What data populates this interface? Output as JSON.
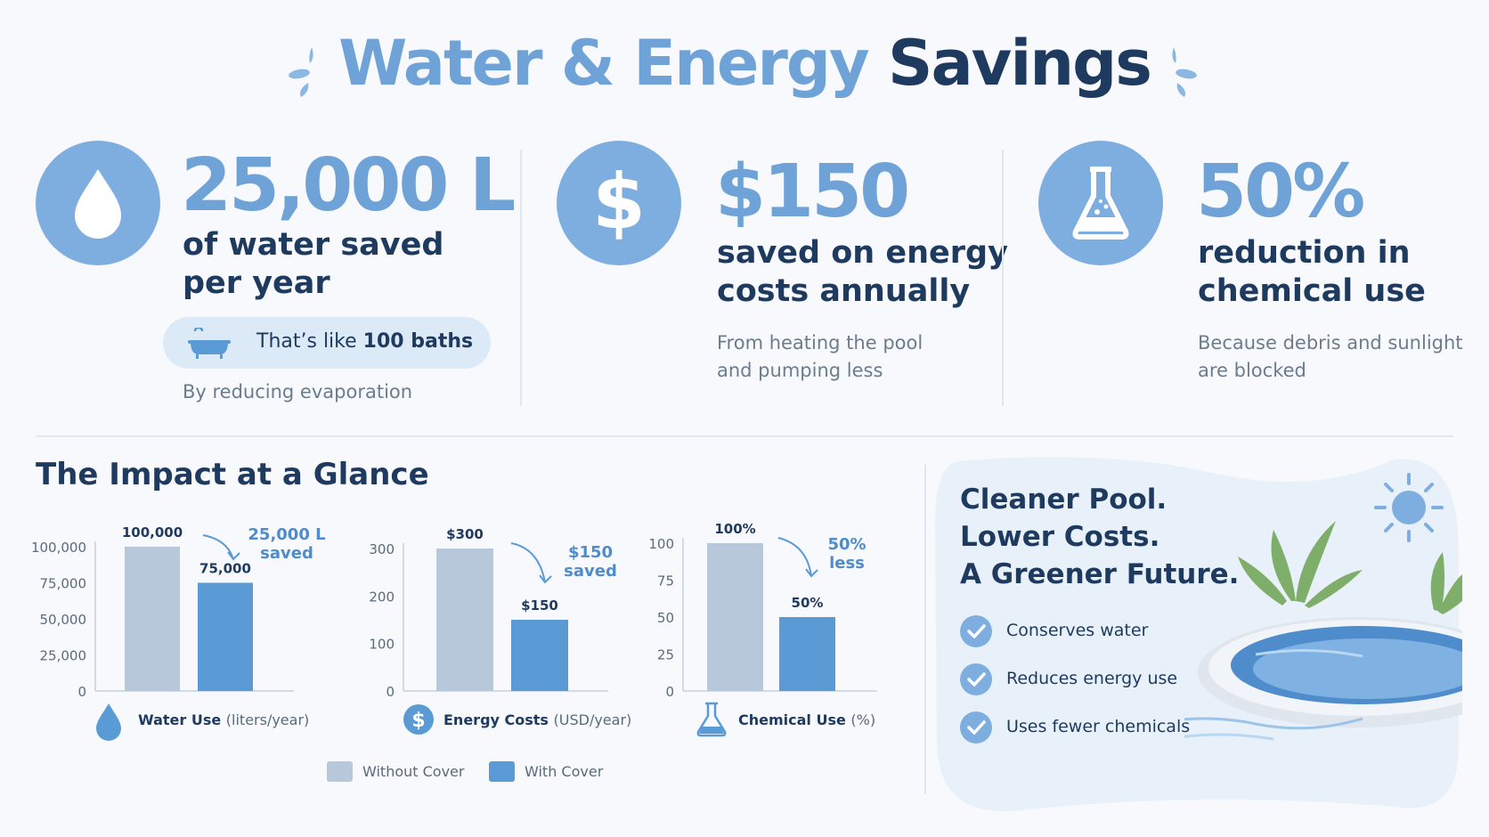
{
  "title": {
    "part1": "Water & Energy",
    "part2": "Savings"
  },
  "colors": {
    "accent": "#6fa3d8",
    "navy": "#1f3a5f",
    "without_cover": "#b7c8da",
    "with_cover": "#5b9bd5",
    "muted": "#6b7c8f"
  },
  "stats": [
    {
      "icon": "water-drop-icon",
      "value": "25,000 L",
      "desc_line1": "of water saved",
      "desc_line2": "per year",
      "note": "By reducing evaporation",
      "callout": {
        "icon": "bathtub-icon",
        "text_prefix": "That’s like",
        "text_bold": "100 baths"
      }
    },
    {
      "icon": "dollar-icon",
      "value": "$150",
      "desc_line1": "saved on energy",
      "desc_line2": "costs annually",
      "note_line1": "From heating the pool",
      "note_line2": "and pumping less"
    },
    {
      "icon": "flask-icon",
      "value": "50%",
      "desc_line1": "reduction in",
      "desc_line2": "chemical use",
      "note_line1": "Because debris and sunlight",
      "note_line2": "are blocked"
    }
  ],
  "glance_title": "The Impact at a Glance",
  "chart_data": [
    {
      "type": "bar",
      "title": "",
      "label_bold": "Water Use",
      "label_unit": "(liters/year)",
      "icon": "water-drop-icon",
      "categories": [
        "Without Cover",
        "With Cover"
      ],
      "values": [
        100000,
        75000
      ],
      "value_labels": [
        "100,000",
        "75,000"
      ],
      "ylim": [
        0,
        100000
      ],
      "yticks": [
        0,
        25000,
        50000,
        75000,
        100000
      ],
      "ytick_labels": [
        "0",
        "25,000",
        "50,000",
        "75,000",
        "100,000"
      ],
      "annotation": {
        "line1": "25,000 L",
        "line2": "saved"
      }
    },
    {
      "type": "bar",
      "title": "",
      "label_bold": "Energy Costs",
      "label_unit": "(USD/year)",
      "icon": "dollar-icon",
      "categories": [
        "Without Cover",
        "With Cover"
      ],
      "values": [
        300,
        150
      ],
      "value_labels": [
        "$300",
        "$150"
      ],
      "ylim": [
        0,
        300
      ],
      "yticks": [
        0,
        100,
        200,
        300
      ],
      "ytick_labels": [
        "0",
        "100",
        "200",
        "300"
      ],
      "annotation": {
        "line1": "$150",
        "line2": "saved"
      }
    },
    {
      "type": "bar",
      "title": "",
      "label_bold": "Chemical Use",
      "label_unit": "(%)",
      "icon": "flask-icon",
      "categories": [
        "Without Cover",
        "With Cover"
      ],
      "values": [
        100,
        50
      ],
      "value_labels": [
        "100%",
        "50%"
      ],
      "ylim": [
        0,
        100
      ],
      "yticks": [
        0,
        25,
        50,
        75,
        100
      ],
      "ytick_labels": [
        "0",
        "25",
        "50",
        "75",
        "100"
      ],
      "annotation": {
        "line1": "50%",
        "line2": "less"
      }
    }
  ],
  "legend": {
    "without": "Without Cover",
    "with": "With Cover"
  },
  "panel": {
    "headline": [
      "Cleaner Pool.",
      "Lower Costs.",
      "A Greener Future."
    ],
    "benefits": [
      "Conserves water",
      "Reduces energy use",
      "Uses fewer chemicals"
    ]
  }
}
